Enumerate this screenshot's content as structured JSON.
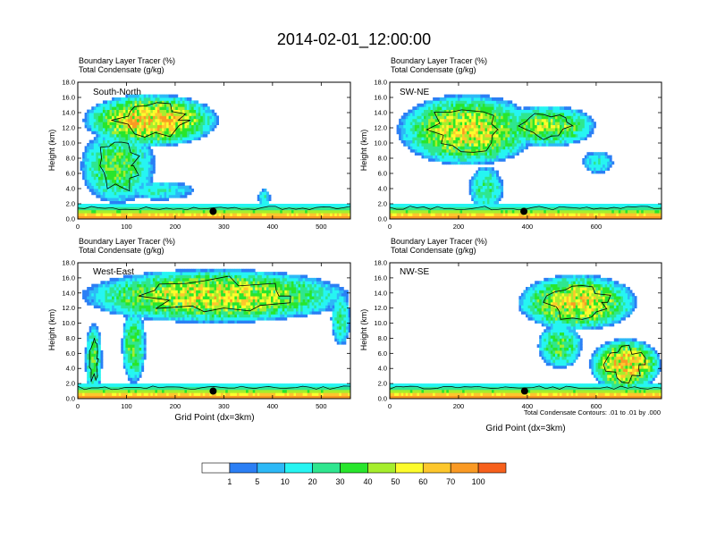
{
  "title": "2014-02-01_12:00:00",
  "colors": {
    "fills": [
      "#ffffff",
      "#2b7ff5",
      "#2db9f7",
      "#26f5f2",
      "#2fe68f",
      "#28e62c",
      "#a6ee2d",
      "#fdfc2c",
      "#fdc72c",
      "#fa9a24",
      "#f7601c",
      "#f11a1a"
    ],
    "contour": "#000000",
    "marker": "#000000"
  },
  "chart_data": [
    {
      "type": "heatmap",
      "label": "South-North",
      "title": [
        "Boundary Layer Tracer   (%)",
        "Total Condensate   (g/kg)"
      ],
      "ylabel": "Height (km)",
      "xlabel": "",
      "xlim": [
        0,
        560
      ],
      "ylim": [
        0,
        18
      ],
      "xticks": [
        0,
        100,
        200,
        300,
        400,
        500
      ],
      "yticks": [
        "0.0",
        "2.0",
        "4.0",
        "6.0",
        "8.0",
        "10.0",
        "12.0",
        "14.0",
        "16.0",
        "18.0"
      ],
      "marker": {
        "x": 278,
        "y": 1.0
      },
      "plumes": [
        {
          "x0": 10,
          "x1": 290,
          "ybot": 9.5,
          "ytop": 16.5,
          "peak": 70
        },
        {
          "x0": 5,
          "x1": 160,
          "ybot": 2.0,
          "ytop": 12.0,
          "peak": 40
        },
        {
          "x0": 100,
          "x1": 240,
          "ybot": 2.5,
          "ytop": 5.0,
          "peak": 20
        },
        {
          "x0": 370,
          "x1": 395,
          "ybot": 1.5,
          "ytop": 4.0,
          "peak": 20
        }
      ]
    },
    {
      "type": "heatmap",
      "label": "SW-NE",
      "title": [
        "Boundary Layer Tracer   (%)",
        "Total Condensate   (g/kg)"
      ],
      "ylabel": "Height (km)",
      "xlabel": "",
      "xlim": [
        0,
        790
      ],
      "ylim": [
        0,
        18
      ],
      "xticks": [
        0,
        200,
        400,
        600
      ],
      "yticks": [
        "0.0",
        "2.0",
        "4.0",
        "6.0",
        "8.0",
        "10.0",
        "12.0",
        "14.0",
        "16.0",
        "18.0"
      ],
      "marker": {
        "x": 390,
        "y": 1.0
      },
      "plumes": [
        {
          "x0": 20,
          "x1": 430,
          "ybot": 7.0,
          "ytop": 16.5,
          "peak": 60
        },
        {
          "x0": 320,
          "x1": 600,
          "ybot": 9.5,
          "ytop": 15.0,
          "peak": 50
        },
        {
          "x0": 230,
          "x1": 330,
          "ybot": 1.0,
          "ytop": 7.0,
          "peak": 30
        },
        {
          "x0": 560,
          "x1": 650,
          "ybot": 6.0,
          "ytop": 9.0,
          "peak": 20
        }
      ]
    },
    {
      "type": "heatmap",
      "label": "West-East",
      "title": [
        "Boundary Layer Tracer   (%)",
        "Total Condensate   (g/kg)"
      ],
      "ylabel": "Height (km)",
      "xlabel": "Grid Point (dx=3km)",
      "xlim": [
        0,
        560
      ],
      "ylim": [
        0,
        18
      ],
      "xticks": [
        0,
        100,
        200,
        300,
        400,
        500
      ],
      "yticks": [
        "0.0",
        "2.0",
        "4.0",
        "6.0",
        "8.0",
        "10.0",
        "12.0",
        "14.0",
        "16.0",
        "18.0"
      ],
      "marker": {
        "x": 278,
        "y": 1.0
      },
      "plumes": [
        {
          "x0": 5,
          "x1": 560,
          "ybot": 10.0,
          "ytop": 17.2,
          "peak": 60
        },
        {
          "x0": 15,
          "x1": 50,
          "ybot": 0.5,
          "ytop": 10.0,
          "peak": 40
        },
        {
          "x0": 90,
          "x1": 140,
          "ybot": 2.0,
          "ytop": 12.0,
          "peak": 40
        },
        {
          "x0": 520,
          "x1": 560,
          "ybot": 7.0,
          "ytop": 14.0,
          "peak": 30
        }
      ]
    },
    {
      "type": "heatmap",
      "label": "NW-SE",
      "title": [
        "Boundary Layer Tracer   (%)",
        "Total Condensate   (g/kg)"
      ],
      "ylabel": "Height (km)",
      "xlabel": "Grid Point (dx=3km)",
      "xlim": [
        0,
        790
      ],
      "ylim": [
        0,
        18
      ],
      "xticks": [
        0,
        200,
        400,
        600
      ],
      "yticks": [
        "0.0",
        "2.0",
        "4.0",
        "6.0",
        "8.0",
        "10.0",
        "12.0",
        "14.0",
        "16.0",
        "18.0"
      ],
      "marker": {
        "x": 392,
        "y": 1.0
      },
      "note": "Total Condensate Contours: .01 to .01 by .000",
      "plumes": [
        {
          "x0": 370,
          "x1": 720,
          "ybot": 9.0,
          "ytop": 16.5,
          "peak": 60
        },
        {
          "x0": 580,
          "x1": 790,
          "ybot": 1.0,
          "ytop": 8.0,
          "peak": 70
        },
        {
          "x0": 430,
          "x1": 560,
          "ybot": 4.0,
          "ytop": 10.0,
          "peak": 40
        }
      ]
    }
  ],
  "colorbar": {
    "labels": [
      "1",
      "5",
      "10",
      "20",
      "30",
      "40",
      "50",
      "60",
      "70",
      "100"
    ]
  }
}
